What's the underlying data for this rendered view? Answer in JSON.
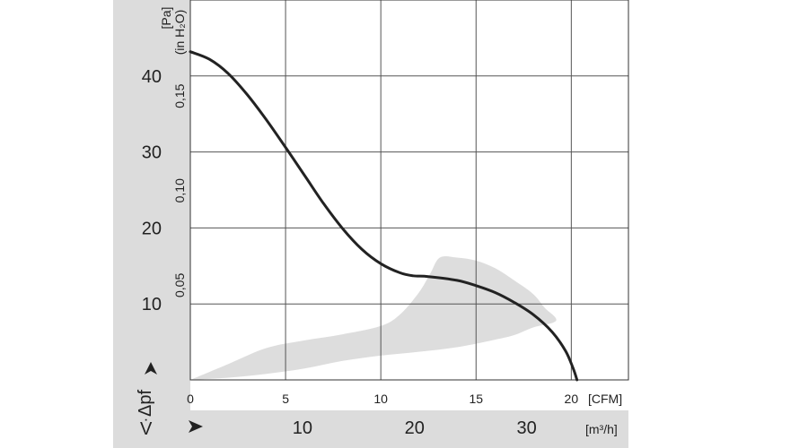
{
  "chart_data": {
    "type": "line",
    "title": "",
    "x_axis_primary": {
      "unit": "[CFM]",
      "range": [
        0,
        23
      ],
      "ticks": [
        0,
        5,
        10,
        15,
        20
      ],
      "tick_labels": [
        "0",
        "5",
        "10",
        "15",
        "20"
      ]
    },
    "x_axis_secondary": {
      "symbol": "V̇",
      "unit": "[m³/h]",
      "ticks": [
        10,
        20,
        30
      ],
      "tick_labels": [
        "10",
        "20",
        "30"
      ]
    },
    "y_axis_primary": {
      "symbol": "Δpf",
      "unit": "[Pa]",
      "range": [
        0,
        50
      ],
      "ticks": [
        10,
        20,
        30,
        40
      ],
      "tick_labels": [
        "10",
        "20",
        "30",
        "40"
      ]
    },
    "y_axis_secondary": {
      "unit": "(in H₂O)",
      "ticks": [
        0.05,
        0.1,
        0.15
      ],
      "tick_labels": [
        "0,05",
        "0,10",
        "0,15"
      ]
    },
    "grid": true,
    "series": [
      {
        "color": "#222222",
        "points": [
          [
            0,
            43.2
          ],
          [
            1,
            42.2
          ],
          [
            2,
            40.3
          ],
          [
            3,
            37.5
          ],
          [
            4,
            34.2
          ],
          [
            5,
            30.6
          ],
          [
            6,
            26.9
          ],
          [
            7,
            23.2
          ],
          [
            8,
            19.9
          ],
          [
            9,
            17.2
          ],
          [
            10,
            15.3
          ],
          [
            11,
            14.1
          ],
          [
            11.7,
            13.7
          ],
          [
            12.5,
            13.6
          ],
          [
            14,
            13.1
          ],
          [
            15,
            12.4
          ],
          [
            16,
            11.5
          ],
          [
            17,
            10.2
          ],
          [
            18,
            8.6
          ],
          [
            19,
            6.3
          ],
          [
            19.7,
            3.8
          ],
          [
            20.1,
            1.5
          ],
          [
            20.3,
            0
          ]
        ]
      }
    ],
    "shaded_region": {
      "color": "#dddddd",
      "upper_boundary": [
        [
          0,
          0
        ],
        [
          2,
          2.1
        ],
        [
          4,
          4.2
        ],
        [
          6,
          5.2
        ],
        [
          8,
          6.0
        ],
        [
          10,
          7.1
        ],
        [
          11,
          8.6
        ],
        [
          12,
          11.5
        ],
        [
          12.6,
          14.0
        ],
        [
          13.1,
          16.1
        ],
        [
          14,
          16.1
        ],
        [
          15,
          15.7
        ],
        [
          16,
          14.7
        ],
        [
          17,
          13.1
        ],
        [
          18,
          11.3
        ],
        [
          18.6,
          9.5
        ],
        [
          19.2,
          7.8
        ]
      ],
      "lower_boundary": [
        [
          19.2,
          7.8
        ],
        [
          18,
          6.9
        ],
        [
          17,
          5.9
        ],
        [
          16,
          5.3
        ],
        [
          14,
          4.3
        ],
        [
          12,
          3.7
        ],
        [
          10,
          3.2
        ],
        [
          8,
          2.5
        ],
        [
          6,
          1.5
        ],
        [
          4,
          0.8
        ],
        [
          2,
          0.3
        ],
        [
          0,
          0
        ]
      ]
    }
  }
}
